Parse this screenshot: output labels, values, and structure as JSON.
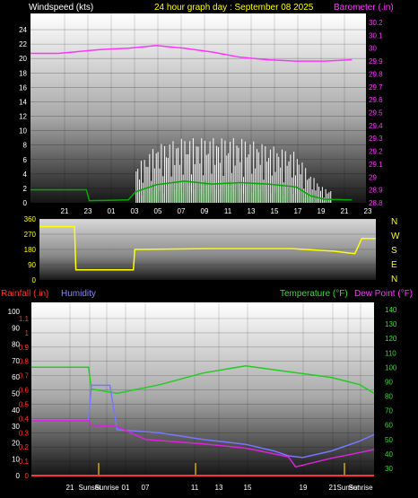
{
  "header": {
    "left_label": "Windspeed (kts)",
    "center_label": "24 hour graph day : September 08 2025",
    "right_label": "Barometer (.in)"
  },
  "colors": {
    "background": "#000000",
    "wind_label": "#ffffff",
    "title": "#ffff00",
    "barometer": "#ff33ff",
    "direction": "#ffff00",
    "rainfall": "#ff3333",
    "humidity": "#8888ff",
    "temperature": "#33dd33",
    "dewpoint": "#ff33ff"
  },
  "x_ticks_top": [
    "21",
    "23",
    "01",
    "03",
    "05",
    "07",
    "09",
    "11",
    "13",
    "15",
    "17",
    "19",
    "21",
    "23"
  ],
  "x_ticks_bottom": [
    "21",
    "Sunset",
    "Sunrise",
    "01",
    "07",
    "11",
    "13",
    "15",
    "19",
    "21",
    "Sunset",
    "Sunrise"
  ],
  "chart_data": [
    {
      "type": "line",
      "name": "wind-barometer",
      "y_left": {
        "label": "Windspeed (kts)",
        "ticks": [
          0,
          2,
          4,
          6,
          8,
          10,
          12,
          14,
          16,
          18,
          20,
          22,
          24
        ],
        "range": [
          0,
          25
        ]
      },
      "y_right": {
        "label": "Barometer (.in)",
        "ticks": [
          "28.8",
          "28.9",
          "29",
          "29.1",
          "29.2",
          "29.3",
          "29.4",
          "29.5",
          "29.6",
          "29.7",
          "29.8",
          "29.9",
          "30",
          "30.1",
          "30.2"
        ],
        "range": [
          28.8,
          30.2
        ]
      },
      "barometer": [
        [
          0,
          29.96
        ],
        [
          2,
          29.96
        ],
        [
          4,
          29.98
        ],
        [
          5,
          29.99
        ],
        [
          7,
          30.0
        ],
        [
          9,
          30.02
        ],
        [
          11,
          30.0
        ],
        [
          13,
          29.97
        ],
        [
          15,
          29.93
        ],
        [
          17,
          29.91
        ],
        [
          19,
          29.9
        ],
        [
          21,
          29.9
        ],
        [
          23,
          29.91
        ]
      ],
      "wind_avg": [
        [
          0,
          1.8
        ],
        [
          4,
          1.8
        ],
        [
          4.2,
          0.3
        ],
        [
          7,
          0.4
        ],
        [
          7.5,
          1.5
        ],
        [
          9,
          2.5
        ],
        [
          11,
          3
        ],
        [
          13,
          2.6
        ],
        [
          15,
          2.8
        ],
        [
          17,
          2.6
        ],
        [
          19,
          2.2
        ],
        [
          20,
          1
        ],
        [
          21,
          0.5
        ],
        [
          23,
          0.4
        ]
      ],
      "wind_gust_max": [
        [
          0,
          2.8
        ],
        [
          4,
          2.8
        ],
        [
          4.2,
          0.6
        ],
        [
          7,
          0.8
        ],
        [
          7.5,
          5
        ],
        [
          9,
          8
        ],
        [
          11,
          9
        ],
        [
          13,
          9
        ],
        [
          15,
          9
        ],
        [
          17,
          8
        ],
        [
          19,
          7
        ],
        [
          20,
          4
        ],
        [
          21,
          2
        ],
        [
          23,
          1
        ]
      ]
    },
    {
      "type": "line",
      "name": "wind-direction",
      "y_left_ticks": [
        "360",
        "270",
        "180",
        "90",
        "0"
      ],
      "y_right_ticks": [
        "N",
        "W",
        "S",
        "E",
        "N"
      ],
      "direction": [
        [
          0,
          315
        ],
        [
          2.5,
          315
        ],
        [
          2.6,
          60
        ],
        [
          6.7,
          60
        ],
        [
          6.8,
          180
        ],
        [
          12,
          185
        ],
        [
          18,
          185
        ],
        [
          21,
          170
        ],
        [
          22.5,
          155
        ],
        [
          23,
          245
        ],
        [
          24,
          245
        ]
      ]
    },
    {
      "type": "line",
      "name": "rain-humidity-temp",
      "labels": {
        "rainfall": "Rainfall (.in)",
        "humidity": "Humidity",
        "temperature": "Temperature (°F)",
        "dewpoint": "Dew Point (°F)"
      },
      "y_humidity_ticks": [
        "0",
        "10",
        "20",
        "30",
        "40",
        "50",
        "60",
        "70",
        "80",
        "90",
        "100"
      ],
      "y_rain_ticks": [
        "0",
        "0.1",
        "0.2",
        "0.3",
        "0.4",
        "0.5",
        "0.6",
        "0.7",
        "0.8",
        "0.9",
        "1",
        "1.1"
      ],
      "y_temp_ticks": [
        "30",
        "40",
        "50",
        "60",
        "70",
        "80",
        "90",
        "100",
        "110",
        "120",
        "130",
        "140"
      ],
      "temperature": [
        [
          0,
          100
        ],
        [
          4,
          100
        ],
        [
          4.2,
          85
        ],
        [
          6,
          82
        ],
        [
          9,
          88
        ],
        [
          12,
          96
        ],
        [
          15,
          101
        ],
        [
          18,
          97
        ],
        [
          21,
          93
        ],
        [
          23,
          88
        ],
        [
          24,
          82
        ]
      ],
      "dewpoint": [
        [
          0,
          63
        ],
        [
          4,
          63
        ],
        [
          4.2,
          60
        ],
        [
          6,
          59
        ],
        [
          8,
          50
        ],
        [
          12,
          47
        ],
        [
          15,
          44
        ],
        [
          18,
          38
        ],
        [
          18.5,
          31
        ],
        [
          21,
          37
        ],
        [
          23,
          41
        ],
        [
          24,
          43
        ]
      ],
      "humidity": [
        [
          0,
          34
        ],
        [
          4,
          34
        ],
        [
          4.2,
          55
        ],
        [
          5.5,
          55
        ],
        [
          6,
          28
        ],
        [
          9,
          26
        ],
        [
          12,
          22
        ],
        [
          15,
          19
        ],
        [
          17,
          15
        ],
        [
          18,
          12
        ],
        [
          19,
          11
        ],
        [
          21,
          15
        ],
        [
          23,
          21
        ],
        [
          24,
          25
        ]
      ],
      "rainfall": [
        [
          0,
          0.0
        ],
        [
          24,
          0.0
        ]
      ]
    }
  ]
}
